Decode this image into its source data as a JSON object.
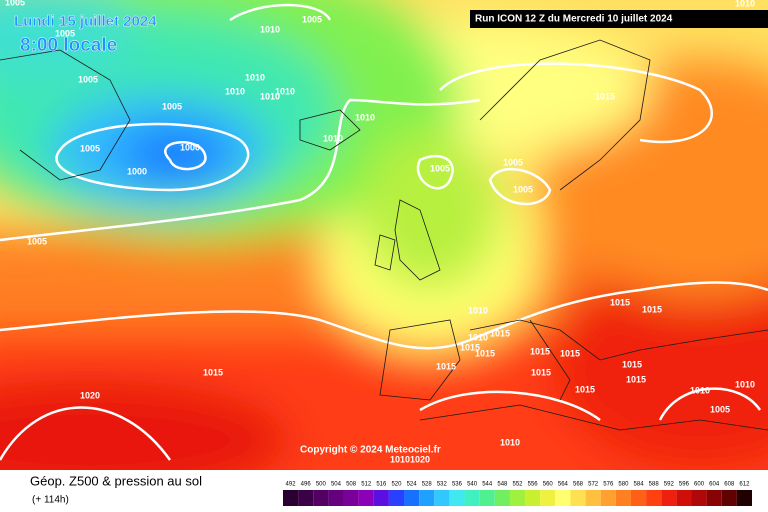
{
  "header": {
    "date": "Lundi 15 juillet 2024",
    "time": "8:00 locale",
    "run": "Run ICON 12 Z du Mercredi 10 juillet 2024"
  },
  "map": {
    "copyright": "Copyright © 2024 Meteociel.fr",
    "isobar_labels": [
      "1005",
      "1010",
      "1005",
      "1010",
      "1005",
      "1010",
      "1010",
      "1010",
      "1010",
      "1005",
      "1005",
      "1010",
      "1010",
      "1000",
      "1005",
      "1000",
      "1015",
      "1005",
      "1005",
      "1005",
      "1005",
      "1015",
      "1010",
      "1015",
      "1015",
      "1010",
      "1015",
      "1015",
      "1015",
      "1015",
      "1015",
      "1015",
      "1015",
      "1015",
      "1015",
      "1010",
      "1010",
      "1015",
      "1020",
      "1005",
      "1010",
      "1010",
      "1020"
    ]
  },
  "footer": {
    "title": "Géop. Z500 & pression au sol",
    "lead": "(+ 114h)"
  },
  "legend": {
    "values": [
      492,
      496,
      500,
      504,
      508,
      512,
      516,
      520,
      524,
      528,
      532,
      536,
      540,
      544,
      548,
      552,
      556,
      560,
      564,
      568,
      572,
      576,
      580,
      584,
      588,
      592,
      596,
      600,
      604,
      608,
      612
    ],
    "colors": [
      "#2a0030",
      "#3c0048",
      "#520062",
      "#66007e",
      "#7a009a",
      "#8c00b8",
      "#5a10e0",
      "#2a40ff",
      "#1870ff",
      "#20a0ff",
      "#30c8ff",
      "#40e8f0",
      "#40f0c0",
      "#50f090",
      "#70f060",
      "#a0f040",
      "#c8f030",
      "#f0f040",
      "#ffff70",
      "#ffe050",
      "#ffc040",
      "#ffa030",
      "#ff8020",
      "#ff6018",
      "#ff4010",
      "#f02010",
      "#d01008",
      "#b00808",
      "#880404",
      "#600202",
      "#200000"
    ]
  }
}
